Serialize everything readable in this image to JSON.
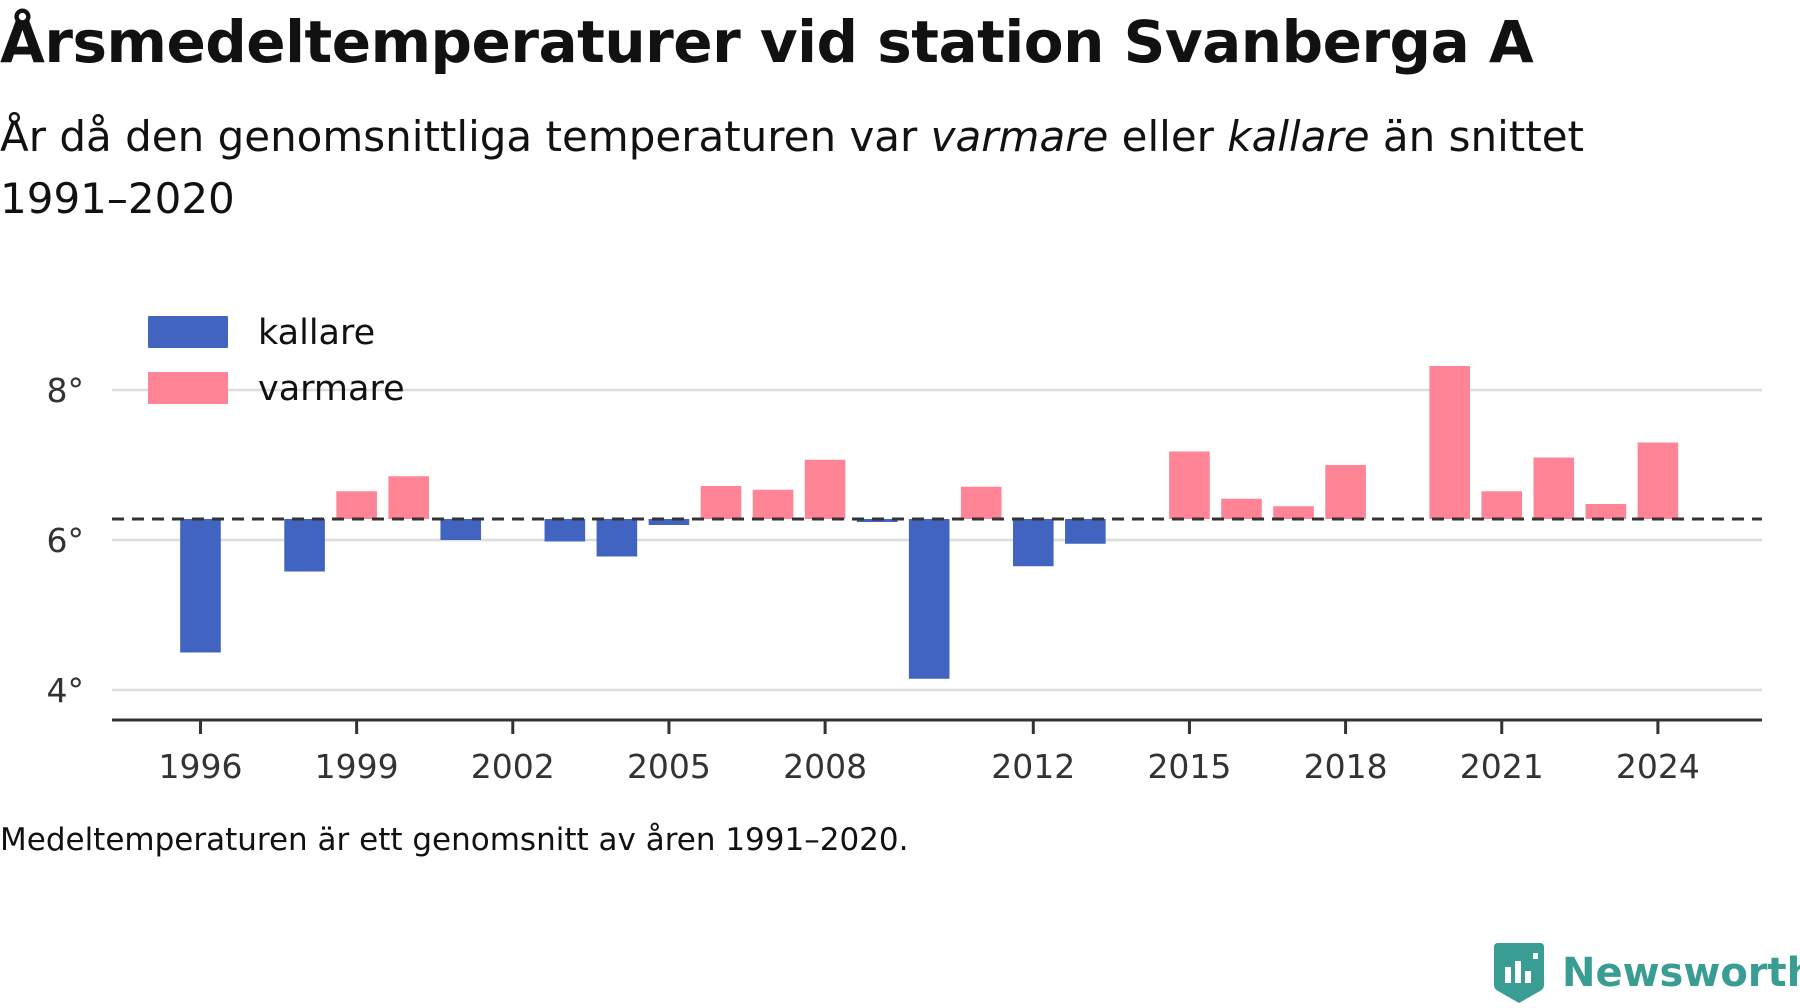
{
  "header": {
    "title": "Årsmedeltemperaturer vid station Svanberga A",
    "subtitle_part1": "År då den genomsnittliga temperaturen var ",
    "subtitle_em1": "varmare",
    "subtitle_part2": " eller ",
    "subtitle_em2": "kallare",
    "subtitle_part3": " än snittet 1991–2020"
  },
  "footnote": "Medeltemperaturen är ett genomsnitt av åren 1991–2020.",
  "brand": {
    "name": "Newsworthy",
    "color": "#3a9d94",
    "icon": "bar-chart-badge-icon"
  },
  "colors": {
    "colder": "#4164c0",
    "warmer": "#ff8496",
    "baseline": "#333333",
    "grid": "#dcdcdc",
    "axis": "#333333"
  },
  "chart_data": {
    "type": "bar",
    "baseline": 6.28,
    "ylim": [
      3.6,
      8.6
    ],
    "yticks": [
      4,
      6,
      8
    ],
    "ytick_labels": [
      "4°",
      "6°",
      "8°"
    ],
    "xticks": [
      1996,
      1999,
      2002,
      2005,
      2008,
      2012,
      2015,
      2018,
      2021,
      2024
    ],
    "xlim": [
      1994.3,
      2026.0
    ],
    "grid": true,
    "legend": {
      "placement": "top-left",
      "items": [
        {
          "key": "colder",
          "label": "kallare"
        },
        {
          "key": "warmer",
          "label": "varmare"
        }
      ]
    },
    "bars": [
      {
        "year": 1996,
        "value": 4.5
      },
      {
        "year": 1998,
        "value": 5.58
      },
      {
        "year": 1999,
        "value": 6.65
      },
      {
        "year": 2000,
        "value": 6.85
      },
      {
        "year": 2001,
        "value": 6.0
      },
      {
        "year": 2003,
        "value": 5.98
      },
      {
        "year": 2004,
        "value": 5.78
      },
      {
        "year": 2005,
        "value": 6.2
      },
      {
        "year": 2006,
        "value": 6.72
      },
      {
        "year": 2007,
        "value": 6.67
      },
      {
        "year": 2008,
        "value": 7.07
      },
      {
        "year": 2009,
        "value": 6.24
      },
      {
        "year": 2010,
        "value": 4.15
      },
      {
        "year": 2011,
        "value": 6.71
      },
      {
        "year": 2012,
        "value": 5.65
      },
      {
        "year": 2013,
        "value": 5.95
      },
      {
        "year": 2015,
        "value": 7.18
      },
      {
        "year": 2016,
        "value": 6.55
      },
      {
        "year": 2017,
        "value": 6.45
      },
      {
        "year": 2018,
        "value": 7.0
      },
      {
        "year": 2020,
        "value": 8.32
      },
      {
        "year": 2021,
        "value": 6.65
      },
      {
        "year": 2022,
        "value": 7.1
      },
      {
        "year": 2023,
        "value": 6.48
      },
      {
        "year": 2024,
        "value": 7.3
      }
    ]
  }
}
